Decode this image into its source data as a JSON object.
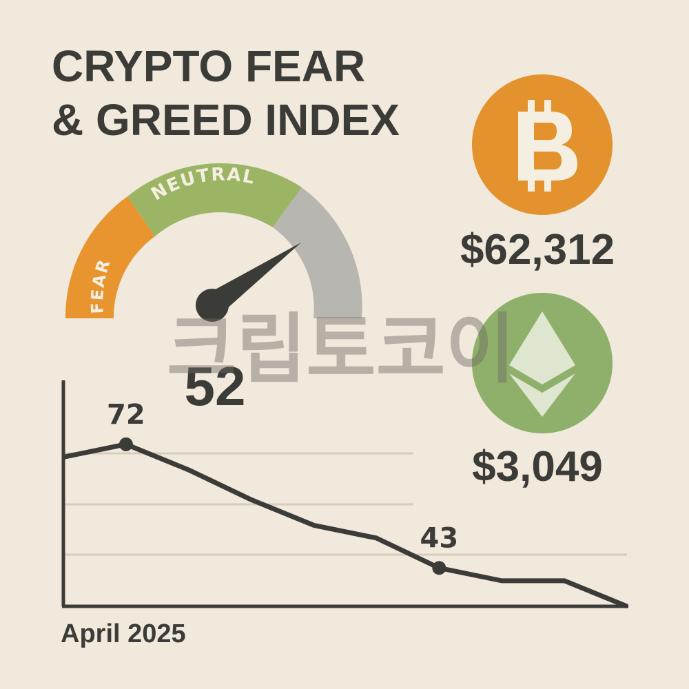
{
  "header": {
    "title_lines": [
      "CRYPTO FEAR",
      "& GREED INDEX"
    ]
  },
  "gauge": {
    "value": 52,
    "segments": [
      "FEAR",
      "NEUTRAL"
    ]
  },
  "prices": [
    {
      "coin": "bitcoin",
      "color": "#e3922e",
      "price": "$62,312"
    },
    {
      "coin": "ethereum",
      "color": "#8fb06b",
      "price": "$3,049"
    }
  ],
  "watermark": "크립토코이",
  "chart_data": {
    "type": "line",
    "x_label": "April 2025",
    "categories": [
      null,
      null,
      null,
      null,
      null,
      null,
      null,
      null,
      null,
      null
    ],
    "series": [
      {
        "color": "#3b3b38",
        "values": [
          69,
          72,
          66,
          59,
          53,
          50,
          43,
          40,
          40,
          34
        ],
        "value_labels": [
          null,
          "72",
          null,
          null,
          null,
          null,
          "43",
          null,
          null,
          null
        ]
      }
    ],
    "ylim": [
      34,
      87
    ]
  }
}
